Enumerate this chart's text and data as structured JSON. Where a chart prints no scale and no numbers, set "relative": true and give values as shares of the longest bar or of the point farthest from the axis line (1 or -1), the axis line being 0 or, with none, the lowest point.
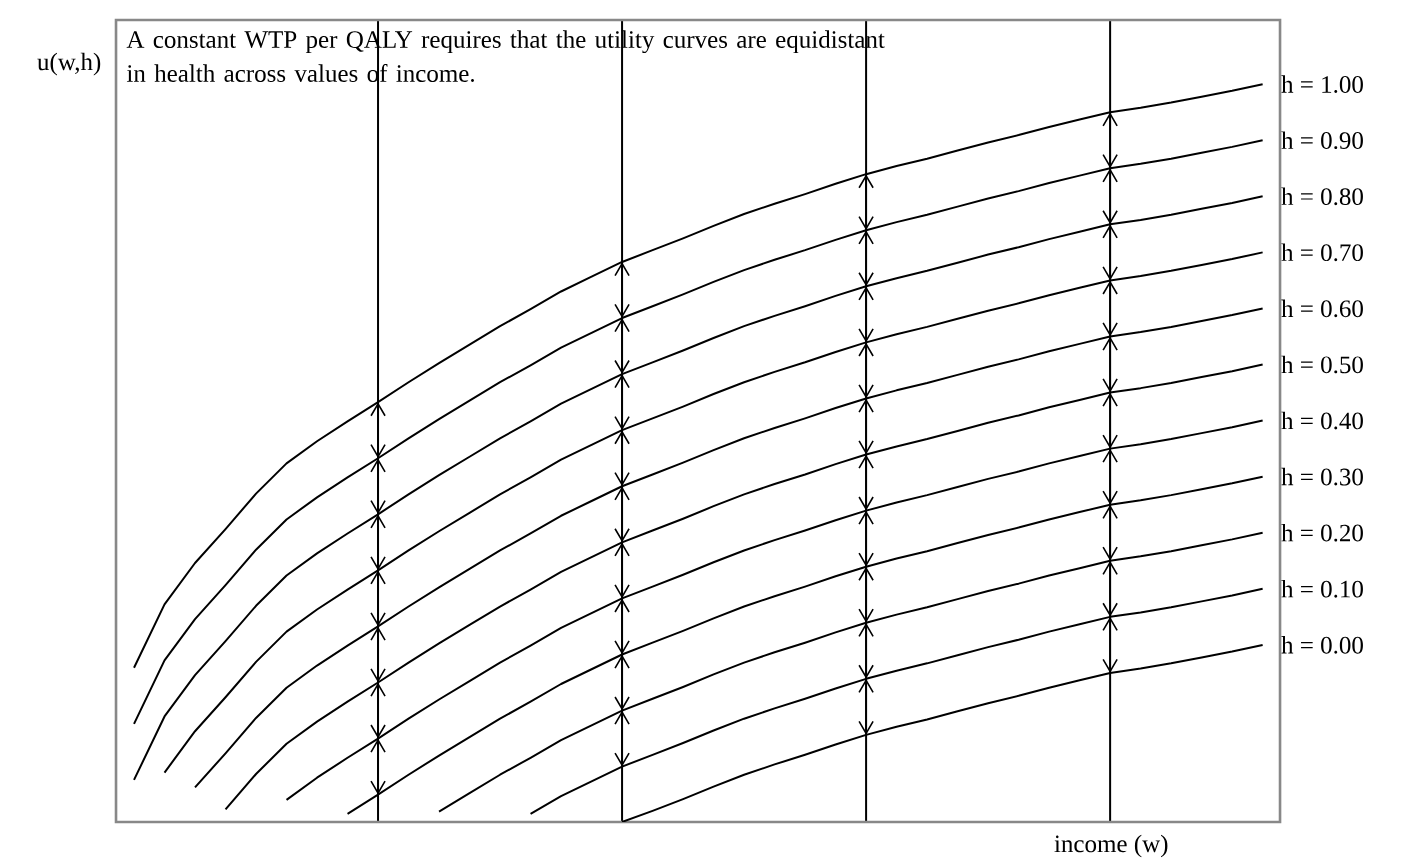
{
  "chart_data": {
    "type": "line",
    "relative": true,
    "xlabel": "income (w)",
    "ylabel": "u(w,h)",
    "annotations": [
      "A constant WTP per QALY requires that the utility curves are equidistant in health across values of income."
    ],
    "categories": [
      null,
      null,
      null,
      null,
      null,
      null,
      null,
      null,
      null,
      null,
      null,
      null,
      null,
      null,
      null,
      null,
      null,
      null,
      null,
      null,
      null,
      null,
      null,
      null,
      null,
      null,
      null,
      null,
      null,
      null,
      null,
      null,
      null,
      null,
      null,
      null,
      null,
      null
    ],
    "legend": false,
    "grid": "x",
    "series": [
      {
        "name": "h = 1.00",
        "color": "#000000",
        "values": [
          0.209,
          0.295,
          0.351,
          0.397,
          0.445,
          0.486,
          0.516,
          0.543,
          0.569,
          0.596,
          0.622,
          0.647,
          0.672,
          0.695,
          0.719,
          0.739,
          0.759,
          0.775,
          0.791,
          0.808,
          0.824,
          0.838,
          0.851,
          0.865,
          0.878,
          0.889,
          0.899,
          0.91,
          0.921,
          0.931,
          0.942,
          0.952,
          0.962,
          0.968,
          0.975,
          0.983,
          0.991,
          1.0
        ]
      },
      {
        "name": "h = 0.90",
        "color": "#000000",
        "values": [
          0.133,
          0.219,
          0.275,
          0.321,
          0.369,
          0.41,
          0.44,
          0.467,
          0.493,
          0.52,
          0.546,
          0.571,
          0.596,
          0.619,
          0.643,
          0.663,
          0.683,
          0.699,
          0.715,
          0.732,
          0.748,
          0.762,
          0.775,
          0.789,
          0.802,
          0.813,
          0.823,
          0.834,
          0.845,
          0.855,
          0.866,
          0.876,
          0.886,
          0.892,
          0.899,
          0.907,
          0.915,
          0.924
        ]
      },
      {
        "name": "h = 0.80",
        "color": "#000000",
        "values": [
          0.057,
          0.143,
          0.199,
          0.245,
          0.293,
          0.334,
          0.364,
          0.391,
          0.417,
          0.444,
          0.47,
          0.495,
          0.52,
          0.543,
          0.567,
          0.587,
          0.607,
          0.623,
          0.639,
          0.656,
          0.672,
          0.686,
          0.699,
          0.713,
          0.726,
          0.737,
          0.747,
          0.758,
          0.769,
          0.779,
          0.79,
          0.8,
          0.81,
          0.816,
          0.823,
          0.831,
          0.839,
          0.848
        ]
      },
      {
        "name": "h = 0.70",
        "color": "#000000",
        "values": [
          null,
          0.067,
          0.123,
          0.169,
          0.217,
          0.258,
          0.288,
          0.315,
          0.341,
          0.368,
          0.394,
          0.419,
          0.444,
          0.467,
          0.491,
          0.511,
          0.531,
          0.547,
          0.563,
          0.58,
          0.596,
          0.61,
          0.623,
          0.637,
          0.65,
          0.661,
          0.671,
          0.682,
          0.693,
          0.703,
          0.714,
          0.724,
          0.734,
          0.74,
          0.747,
          0.755,
          0.763,
          0.772
        ]
      },
      {
        "name": "h = 0.60",
        "color": "#000000",
        "values": [
          null,
          null,
          0.047,
          0.093,
          0.141,
          0.182,
          0.212,
          0.239,
          0.265,
          0.292,
          0.318,
          0.343,
          0.368,
          0.391,
          0.415,
          0.435,
          0.455,
          0.471,
          0.487,
          0.504,
          0.52,
          0.534,
          0.547,
          0.561,
          0.574,
          0.585,
          0.595,
          0.606,
          0.617,
          0.627,
          0.638,
          0.648,
          0.658,
          0.664,
          0.671,
          0.679,
          0.687,
          0.696
        ]
      },
      {
        "name": "h = 0.50",
        "color": "#000000",
        "values": [
          null,
          null,
          null,
          0.017,
          0.065,
          0.106,
          0.136,
          0.163,
          0.189,
          0.216,
          0.242,
          0.267,
          0.292,
          0.315,
          0.339,
          0.359,
          0.379,
          0.395,
          0.411,
          0.428,
          0.444,
          0.458,
          0.471,
          0.485,
          0.498,
          0.509,
          0.519,
          0.53,
          0.541,
          0.551,
          0.562,
          0.572,
          0.582,
          0.588,
          0.595,
          0.603,
          0.611,
          0.62
        ]
      },
      {
        "name": "h = 0.40",
        "color": "#000000",
        "values": [
          null,
          null,
          null,
          null,
          null,
          0.03,
          0.06,
          0.087,
          0.113,
          0.14,
          0.166,
          0.191,
          0.216,
          0.239,
          0.263,
          0.283,
          0.303,
          0.319,
          0.335,
          0.352,
          0.368,
          0.382,
          0.395,
          0.409,
          0.422,
          0.433,
          0.443,
          0.454,
          0.465,
          0.475,
          0.486,
          0.496,
          0.506,
          0.512,
          0.519,
          0.527,
          0.535,
          0.544
        ]
      },
      {
        "name": "h = 0.30",
        "color": "#000000",
        "values": [
          null,
          null,
          null,
          null,
          null,
          null,
          null,
          0.011,
          0.037,
          0.064,
          0.09,
          0.115,
          0.14,
          0.163,
          0.187,
          0.207,
          0.227,
          0.243,
          0.259,
          0.276,
          0.292,
          0.306,
          0.319,
          0.333,
          0.346,
          0.357,
          0.367,
          0.378,
          0.389,
          0.399,
          0.41,
          0.42,
          0.43,
          0.436,
          0.443,
          0.451,
          0.459,
          0.468
        ]
      },
      {
        "name": "h = 0.20",
        "color": "#000000",
        "values": [
          null,
          null,
          null,
          null,
          null,
          null,
          null,
          null,
          null,
          null,
          0.014,
          0.039,
          0.064,
          0.087,
          0.111,
          0.131,
          0.151,
          0.167,
          0.183,
          0.2,
          0.216,
          0.23,
          0.243,
          0.257,
          0.27,
          0.281,
          0.291,
          0.302,
          0.313,
          0.323,
          0.334,
          0.344,
          0.354,
          0.36,
          0.367,
          0.375,
          0.383,
          0.392
        ]
      },
      {
        "name": "h = 0.10",
        "color": "#000000",
        "values": [
          null,
          null,
          null,
          null,
          null,
          null,
          null,
          null,
          null,
          null,
          null,
          null,
          null,
          0.011,
          0.035,
          0.055,
          0.075,
          0.091,
          0.107,
          0.124,
          0.14,
          0.154,
          0.167,
          0.181,
          0.194,
          0.205,
          0.215,
          0.226,
          0.237,
          0.247,
          0.258,
          0.268,
          0.278,
          0.284,
          0.291,
          0.299,
          0.307,
          0.316
        ]
      },
      {
        "name": "h = 0.00",
        "color": "#000000",
        "values": [
          null,
          null,
          null,
          null,
          null,
          null,
          null,
          null,
          null,
          null,
          null,
          null,
          null,
          null,
          null,
          null,
          0,
          0.015,
          0.031,
          0.048,
          0.064,
          0.078,
          0.091,
          0.105,
          0.118,
          0.129,
          0.139,
          0.15,
          0.161,
          0.171,
          0.182,
          0.192,
          0.202,
          0.208,
          0.215,
          0.223,
          0.231,
          0.24
        ]
      }
    ]
  }
}
